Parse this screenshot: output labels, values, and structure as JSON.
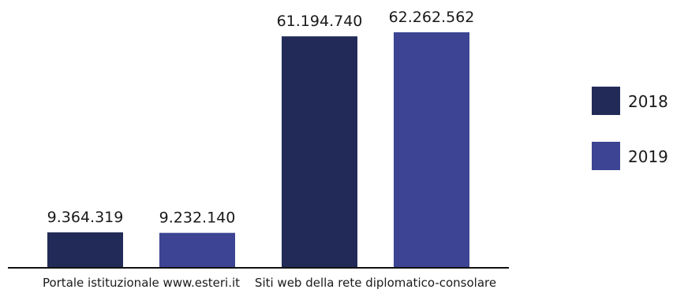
{
  "chart_data": {
    "type": "bar",
    "categories": [
      "Portale istituzionale www.esteri.it",
      "Siti web della rete diplomatico-consolare"
    ],
    "series": [
      {
        "name": "2018",
        "color": "#222b58",
        "values": [
          9364319,
          61194740
        ],
        "labels": [
          "9.364.319",
          "61.194.740"
        ]
      },
      {
        "name": "2019",
        "color": "#3c4493",
        "values": [
          9232140,
          62262562
        ],
        "labels": [
          "9.232.140",
          "62.262.562"
        ]
      }
    ],
    "ylim": [
      0,
      62262562
    ],
    "grid": false,
    "legend": "right"
  }
}
